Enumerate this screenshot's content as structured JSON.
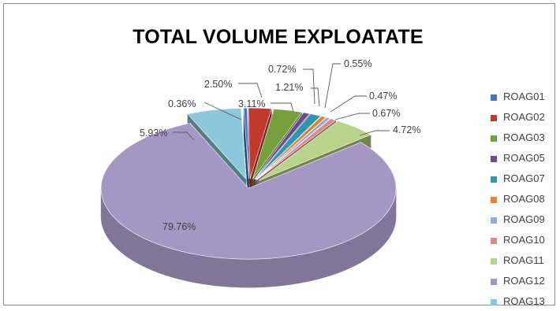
{
  "chart_data": {
    "type": "pie",
    "title": "TOTAL VOLUME EXPLOATATE",
    "style": "3d-exploded",
    "legend_position": "right",
    "slices": [
      {
        "name": "ROAG01",
        "value": 0.36,
        "label": "0.36%",
        "color": "#4472C4"
      },
      {
        "name": "ROAG02",
        "value": 2.5,
        "label": "2.50%",
        "color": "#C0392B"
      },
      {
        "name": "ROAG03",
        "value": 3.11,
        "label": "3.11%",
        "color": "#77A03C"
      },
      {
        "name": "ROAG05",
        "value": 0.72,
        "label": "0.72%",
        "color": "#6B4A8E"
      },
      {
        "name": "ROAG07",
        "value": 1.21,
        "label": "1.21%",
        "color": "#2E97AE"
      },
      {
        "name": "ROAG08",
        "value": 0.55,
        "label": "0.55%",
        "color": "#E3822D"
      },
      {
        "name": "ROAG09",
        "value": 0.47,
        "label": "0.47%",
        "color": "#92A9D6"
      },
      {
        "name": "ROAG10",
        "value": 0.67,
        "label": "0.67%",
        "color": "#D98C8A"
      },
      {
        "name": "ROAG11",
        "value": 4.72,
        "label": "4.72%",
        "color": "#B8D38A"
      },
      {
        "name": "ROAG12",
        "value": 79.76,
        "label": "79.76%",
        "color": "#A597C4"
      },
      {
        "name": "ROAG13",
        "value": 5.93,
        "label": "5.93%",
        "color": "#8BC8DA"
      }
    ]
  }
}
